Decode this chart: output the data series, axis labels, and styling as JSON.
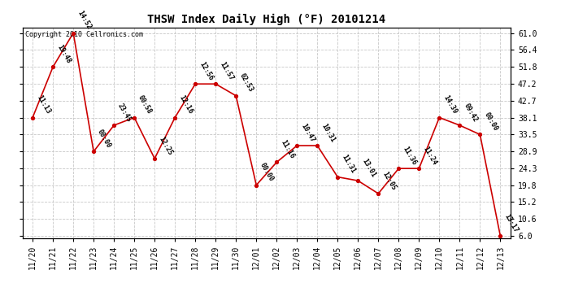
{
  "title": "THSW Index Daily High (°F) 20101214",
  "copyright": "Copyright 2010 Cellronics.com",
  "dates": [
    "11/20",
    "11/21",
    "11/22",
    "11/23",
    "11/24",
    "11/25",
    "11/26",
    "11/27",
    "11/28",
    "11/29",
    "11/30",
    "12/01",
    "12/02",
    "12/03",
    "12/04",
    "12/05",
    "12/06",
    "12/07",
    "12/08",
    "12/09",
    "12/10",
    "12/11",
    "12/12",
    "12/13"
  ],
  "values": [
    38.1,
    51.8,
    61.0,
    28.9,
    36.0,
    38.1,
    27.0,
    38.1,
    47.2,
    47.2,
    44.0,
    19.8,
    26.0,
    30.5,
    30.5,
    22.0,
    21.0,
    17.5,
    24.3,
    24.3,
    38.1,
    36.0,
    33.5,
    6.0
  ],
  "time_labels": [
    "11:13",
    "19:48",
    "14:52",
    "00:00",
    "23:45",
    "00:58",
    "12:25",
    "12:16",
    "12:56",
    "11:57",
    "02:53",
    "00:00",
    "11:16",
    "10:47",
    "10:31",
    "11:31",
    "13:01",
    "12:05",
    "11:36",
    "11:24",
    "14:39",
    "09:42",
    "00:00",
    "13:17"
  ],
  "yticks": [
    6.0,
    10.6,
    15.2,
    19.8,
    24.3,
    28.9,
    33.5,
    38.1,
    42.7,
    47.2,
    51.8,
    56.4,
    61.0
  ],
  "ymin": 6.0,
  "ymax": 61.0,
  "line_color": "#cc0000",
  "marker_color": "#cc0000",
  "grid_color": "#c8c8c8",
  "bg_color": "#ffffff",
  "title_fontsize": 10,
  "label_fontsize": 6.0,
  "tick_fontsize": 7,
  "copyright_fontsize": 6
}
